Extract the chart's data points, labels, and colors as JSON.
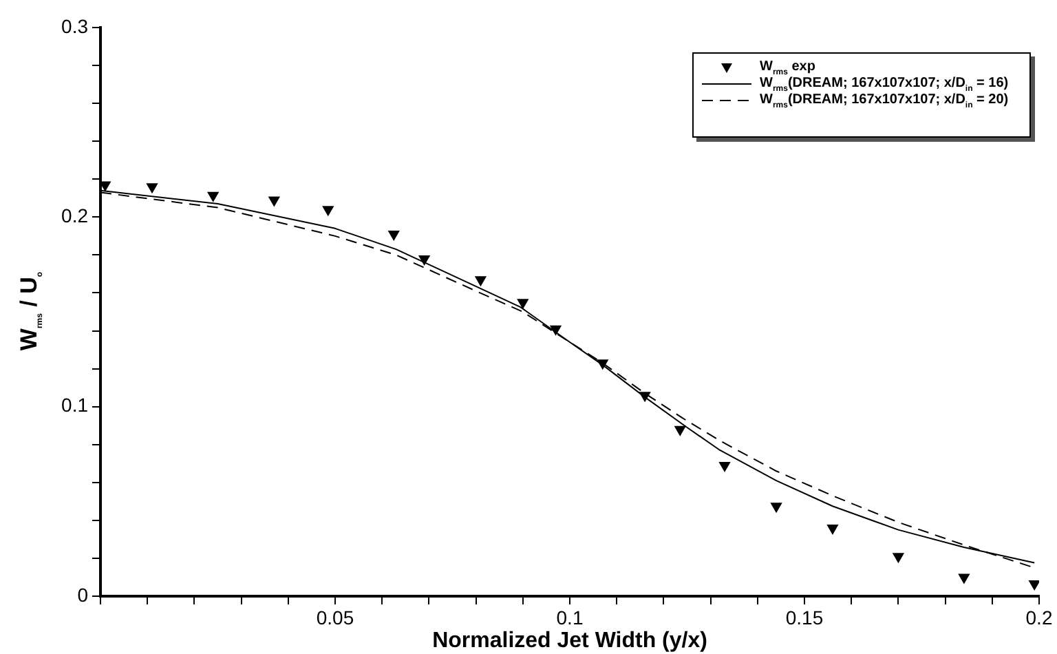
{
  "chart_data": {
    "type": "line",
    "xlabel": "Normalized Jet Width (y/x)",
    "ylabel": "W$_{rms}$ / U$_{o}$",
    "xlim": [
      0,
      0.2
    ],
    "ylim": [
      0,
      0.3
    ],
    "xticks": [
      {
        "value": 0,
        "label": null
      },
      {
        "value": 0.01,
        "label": null
      },
      {
        "value": 0.02,
        "label": null
      },
      {
        "value": 0.03,
        "label": null
      },
      {
        "value": 0.04,
        "label": null
      },
      0.05,
      {
        "value": 0.06,
        "label": null
      },
      {
        "value": 0.07,
        "label": null
      },
      {
        "value": 0.08,
        "label": null
      },
      {
        "value": 0.09,
        "label": null
      },
      0.1,
      {
        "value": 0.11,
        "label": null
      },
      {
        "value": 0.12,
        "label": null
      },
      {
        "value": 0.13,
        "label": null
      },
      {
        "value": 0.14,
        "label": null
      },
      0.15,
      {
        "value": 0.16,
        "label": null
      },
      {
        "value": 0.17,
        "label": null
      },
      {
        "value": 0.18,
        "label": null
      },
      {
        "value": 0.19,
        "label": null
      },
      0.2
    ],
    "yticks": [
      0,
      {
        "value": 0.02,
        "label": null
      },
      {
        "value": 0.04,
        "label": null
      },
      {
        "value": 0.06,
        "label": null
      },
      {
        "value": 0.08,
        "label": null
      },
      0.1,
      {
        "value": 0.12,
        "label": null
      },
      {
        "value": 0.14,
        "label": null
      },
      {
        "value": 0.16,
        "label": null
      },
      {
        "value": 0.18,
        "label": null
      },
      0.2,
      {
        "value": 0.22,
        "label": null
      },
      {
        "value": 0.24,
        "label": null
      },
      {
        "value": 0.26,
        "label": null
      },
      {
        "value": 0.28,
        "label": null
      },
      0.3
    ],
    "grid": false,
    "legend": "top right",
    "series": [
      {
        "name": "W$_{rms}$ exp",
        "type": "scatter",
        "marker": "triangle",
        "color": "#000000",
        "x": [
          0.001,
          0.011,
          0.024,
          0.037,
          0.0485,
          0.0625,
          0.069,
          0.081,
          0.09,
          0.097,
          0.107,
          0.116,
          0.1235,
          0.133,
          0.144,
          0.156,
          0.17,
          0.184,
          0.199
        ],
        "values": [
          0.217,
          0.216,
          0.2115,
          0.209,
          0.204,
          0.191,
          0.178,
          0.167,
          0.155,
          0.141,
          0.123,
          0.106,
          0.088,
          0.069,
          0.0475,
          0.036,
          0.021,
          0.01,
          0.0065
        ]
      },
      {
        "name": "W$_{rms}$(DREAM; 167x107x107; x/D$_{in}$ = 16)",
        "marker": "none",
        "line_style": "solid",
        "color": "#000000",
        "x": [
          0,
          0.025,
          0.05,
          0.063,
          0.0795,
          0.0895,
          0.1,
          0.107,
          0.116,
          0.125,
          0.132,
          0.144,
          0.156,
          0.17,
          0.184,
          0.199
        ],
        "values": [
          0.214,
          0.207,
          0.194,
          0.183,
          0.164,
          0.1525,
          0.134,
          0.122,
          0.105,
          0.089,
          0.077,
          0.061,
          0.0475,
          0.035,
          0.0258,
          0.0176
        ]
      },
      {
        "name": "W$_{rms}$(DREAM; 167x107x107; x/D$_{in}$ = 20)",
        "marker": "none",
        "line_style": "dashed",
        "color": "#000000",
        "x": [
          0,
          0.025,
          0.05,
          0.063,
          0.08,
          0.09,
          0.1,
          0.107,
          0.116,
          0.124,
          0.132,
          0.144,
          0.156,
          0.17,
          0.184,
          0.199
        ],
        "values": [
          0.213,
          0.205,
          0.19,
          0.18,
          0.161,
          0.15,
          0.134,
          0.123,
          0.107,
          0.094,
          0.082,
          0.066,
          0.053,
          0.039,
          0.027,
          0.015
        ]
      }
    ]
  }
}
